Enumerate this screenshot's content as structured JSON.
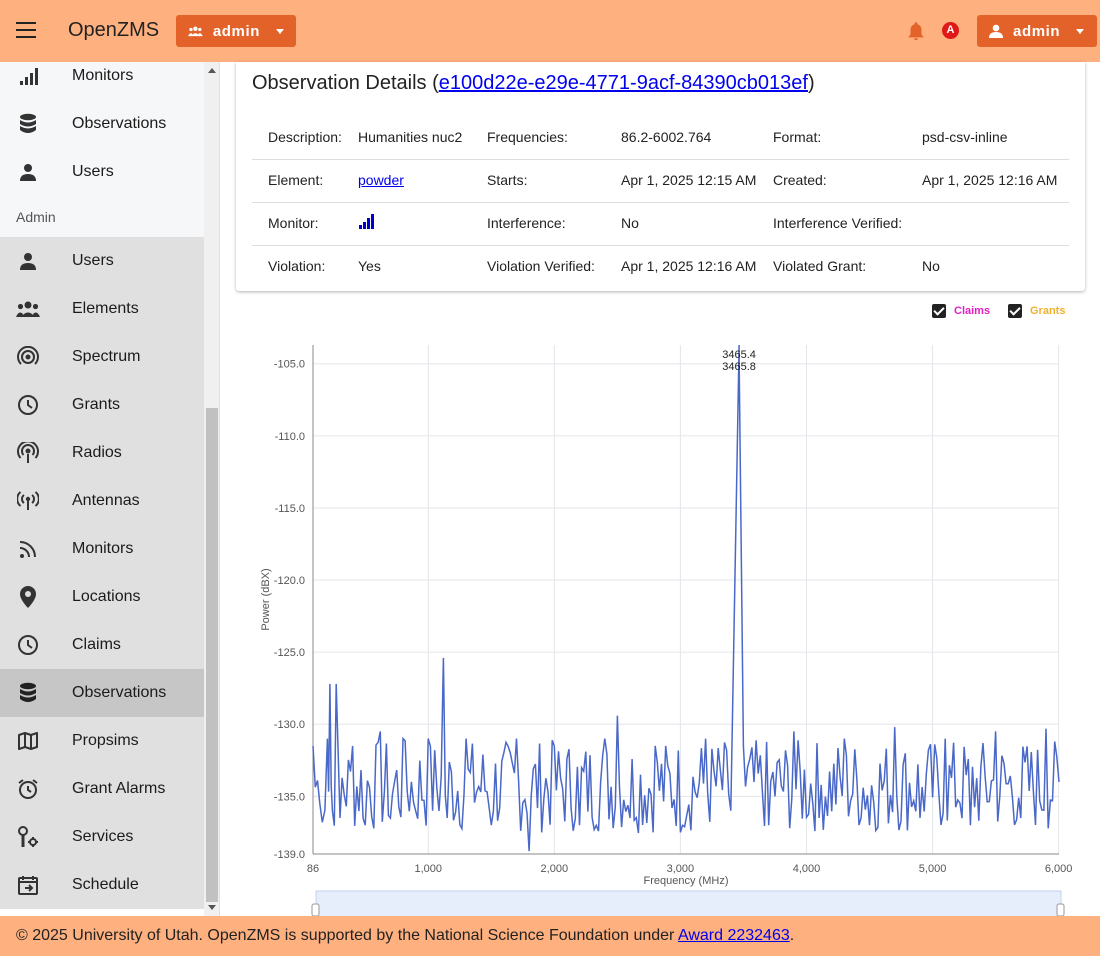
{
  "app": {
    "title": "OpenZMS"
  },
  "header": {
    "group_button_label": "admin",
    "alert_badge": "A",
    "user_button_label": "admin"
  },
  "sidebar": {
    "top_items": [
      {
        "label": "Monitors",
        "icon": "signal-bars-icon"
      },
      {
        "label": "Observations",
        "icon": "database-icon"
      },
      {
        "label": "Users",
        "icon": "person-icon"
      }
    ],
    "admin_header": "Admin",
    "admin_items": [
      {
        "label": "Users",
        "icon": "person-icon"
      },
      {
        "label": "Elements",
        "icon": "group-icon"
      },
      {
        "label": "Spectrum",
        "icon": "broadcast-icon"
      },
      {
        "label": "Grants",
        "icon": "clock-icon"
      },
      {
        "label": "Radios",
        "icon": "radio-tower-icon"
      },
      {
        "label": "Antennas",
        "icon": "antenna-icon"
      },
      {
        "label": "Monitors",
        "icon": "rss-icon"
      },
      {
        "label": "Locations",
        "icon": "location-pin-icon"
      },
      {
        "label": "Claims",
        "icon": "clock-icon"
      },
      {
        "label": "Observations",
        "icon": "database-icon",
        "active": true
      },
      {
        "label": "Propsims",
        "icon": "map-icon"
      },
      {
        "label": "Grant Alarms",
        "icon": "alarm-icon"
      },
      {
        "label": "Services",
        "icon": "tools-icon"
      },
      {
        "label": "Schedule",
        "icon": "calendar-icon"
      }
    ]
  },
  "observation": {
    "title_prefix": "Observation Details (",
    "id": "e100d22e-e29e-4771-9acf-84390cb013ef",
    "title_suffix": ")",
    "rows": [
      {
        "l1": "Description:",
        "v1": "Humanities nuc2",
        "l2": "Frequencies:",
        "v2": "86.2-6002.764",
        "l3": "Format:",
        "v3": "psd-csv-inline"
      },
      {
        "l1": "Element:",
        "v1": "powder",
        "l2": "Starts:",
        "v2": "Apr 1, 2025 12:15 AM",
        "l3": "Created:",
        "v3": "Apr 1, 2025 12:16 AM"
      },
      {
        "l1": "Monitor:",
        "v1": "",
        "l2": "Interference:",
        "v2": "No",
        "l3": "Interference Verified:",
        "v3": ""
      },
      {
        "l1": "Violation:",
        "v1": "Yes",
        "l2": "Violation Verified:",
        "v2": "Apr 1, 2025 12:16 AM",
        "l3": "Violated Grant:",
        "v3": "No"
      }
    ]
  },
  "legend": {
    "claims_label": "Claims",
    "grants_label": "Grants",
    "claims_color": "#e020c0",
    "grants_color": "#f0b030"
  },
  "chart_data": {
    "type": "line",
    "xlabel": "Frequency (MHz)",
    "ylabel": "Power (dBX)",
    "xlim": [
      86,
      6002.764
    ],
    "ylim": [
      -139,
      -103.7
    ],
    "x_ticks": [
      86,
      1000,
      2000,
      3000,
      4000,
      5000,
      6000
    ],
    "x_tick_labels": [
      "86",
      "1,000",
      "2,000",
      "3,000",
      "4,000",
      "5,000",
      "6,000"
    ],
    "y_ticks": [
      -105,
      -110,
      -115,
      -120,
      -125,
      -130,
      -135,
      -139
    ],
    "y_tick_labels": [
      "-105.0",
      "-110.0",
      "-115.0",
      "-120.0",
      "-125.0",
      "-130.0",
      "-135.0",
      "-139.0"
    ],
    "peak_annotations": [
      "3465.4",
      "3465.8"
    ],
    "line_color": "#4a68c8",
    "series": [
      {
        "noise_floor": -134.5,
        "points": [
          [
            86,
            -131.5
          ],
          [
            140,
            -135.5
          ],
          [
            200,
            -131
          ],
          [
            220,
            -127.2
          ],
          [
            240,
            -136
          ],
          [
            270,
            -127.2
          ],
          [
            300,
            -136.5
          ],
          [
            400,
            -131.5
          ],
          [
            500,
            -137
          ],
          [
            620,
            -130.5
          ],
          [
            700,
            -136.5
          ],
          [
            800,
            -131
          ],
          [
            900,
            -136
          ],
          [
            1000,
            -131
          ],
          [
            1120,
            -125.4
          ],
          [
            1150,
            -136.5
          ],
          [
            1300,
            -131
          ],
          [
            1500,
            -137
          ],
          [
            1700,
            -131
          ],
          [
            1800,
            -138.8
          ],
          [
            2000,
            -131.5
          ],
          [
            2200,
            -137
          ],
          [
            2400,
            -131
          ],
          [
            2500,
            -129.4
          ],
          [
            2600,
            -136.5
          ],
          [
            2800,
            -131.5
          ],
          [
            3000,
            -137.5
          ],
          [
            3200,
            -131
          ],
          [
            3400,
            -136
          ],
          [
            3465.4,
            -103.7
          ],
          [
            3465.8,
            -104.5
          ],
          [
            3500,
            -131.5
          ],
          [
            3700,
            -137
          ],
          [
            3900,
            -130.5
          ],
          [
            4100,
            -136.5
          ],
          [
            4300,
            -131
          ],
          [
            4500,
            -137
          ],
          [
            4700,
            -130.2
          ],
          [
            4900,
            -136.5
          ],
          [
            5100,
            -131
          ],
          [
            5300,
            -137
          ],
          [
            5500,
            -130.5
          ],
          [
            5700,
            -136.5
          ],
          [
            5900,
            -130.3
          ],
          [
            6002.764,
            -134
          ]
        ]
      }
    ]
  },
  "footer": {
    "text": "© 2025 University of Utah. OpenZMS is supported by the National Science Foundation under ",
    "link": "Award 2232463",
    "end": "."
  }
}
